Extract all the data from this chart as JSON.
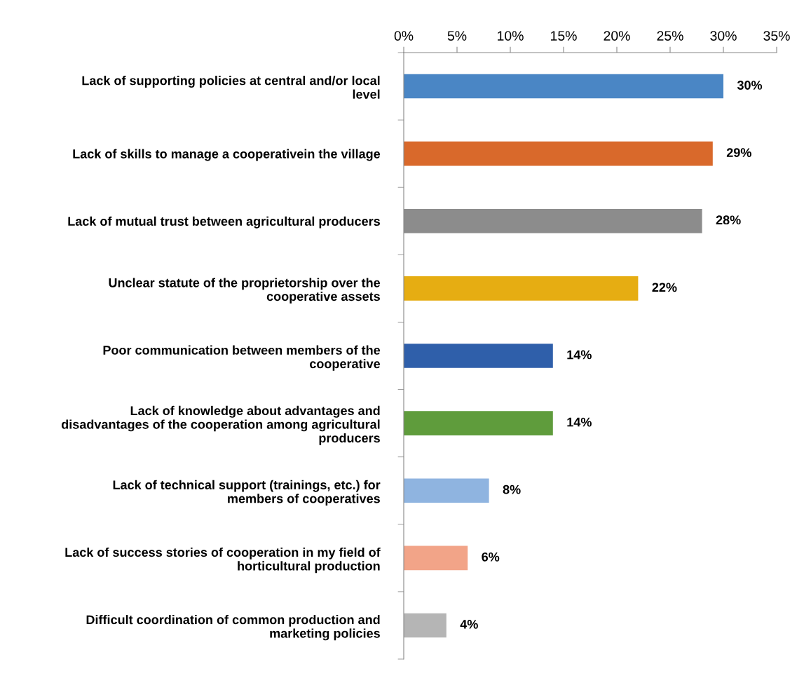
{
  "chart_data": {
    "type": "bar",
    "orientation": "horizontal",
    "categories": [
      "Lack of supporting policies at central and/or local\nlevel",
      "Lack of skills to manage a cooperativein the village",
      "Lack of mutual trust between agricultural producers",
      "Unclear statute of the proprietorship over the\ncooperative assets",
      "Poor communication between members of the\ncooperative",
      "Lack of knowledge about advantages and\ndisadvantages of the cooperation among agricultural\nproducers",
      "Lack of technical support (trainings, etc.) for\nmembers of cooperatives",
      "Lack of success stories of cooperation in my field of\nhorticultural production",
      "Difficult coordination of common production and\nmarketing policies"
    ],
    "values": [
      30,
      29,
      28,
      22,
      14,
      14,
      8,
      6,
      4
    ],
    "colors": [
      "#4a86c5",
      "#d9692b",
      "#8c8c8c",
      "#e6ad12",
      "#2f5faa",
      "#5f9c3c",
      "#8fb4e0",
      "#f2a488",
      "#b5b5b5"
    ],
    "value_labels": [
      "30%",
      "29%",
      "28%",
      "22%",
      "14%",
      "14%",
      "8%",
      "6%",
      "4%"
    ],
    "xlim": [
      0,
      35
    ],
    "xticks": [
      {
        "value": 0,
        "label": "0%"
      },
      {
        "value": 5,
        "label": "5%"
      },
      {
        "value": 10,
        "label": "10%"
      },
      {
        "value": 15,
        "label": "15%"
      },
      {
        "value": 20,
        "label": "20%"
      },
      {
        "value": 25,
        "label": "25%"
      },
      {
        "value": 30,
        "label": "30%"
      },
      {
        "value": 35,
        "label": "35%"
      }
    ],
    "grid": false,
    "legend": false
  }
}
